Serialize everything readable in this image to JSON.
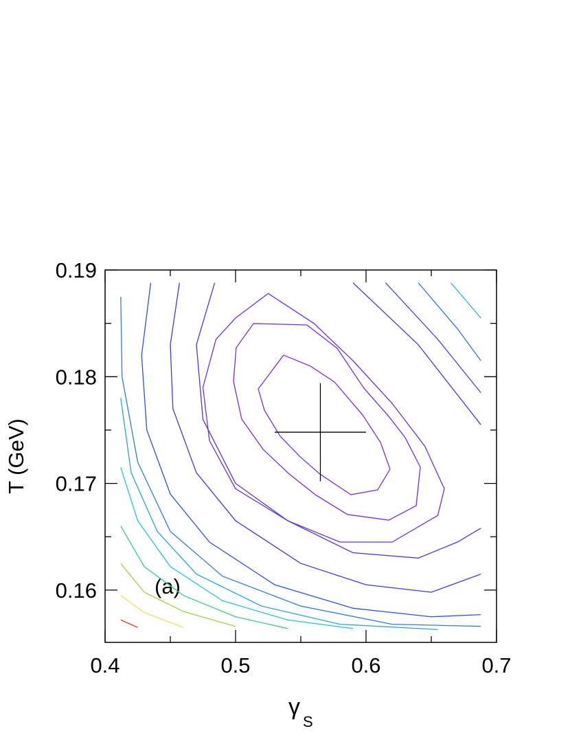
{
  "chart_data": {
    "type": "contour",
    "xlabel": "γ",
    "xlabel_subscript": "S",
    "ylabel": "T (GeV)",
    "annotation": "(a)",
    "xlim": [
      0.4,
      0.7
    ],
    "ylim": [
      0.1551,
      0.19
    ],
    "xticks": [
      0.4,
      0.5,
      0.6,
      0.7
    ],
    "yticks": [
      0.16,
      0.17,
      0.18,
      0.19
    ],
    "xminor": [
      0.45,
      0.55,
      0.65
    ],
    "yminor": [
      0.165,
      0.175,
      0.185
    ],
    "best_fit": {
      "x": 0.565,
      "y": 0.1748,
      "xerr": 0.035,
      "yerr": 0.0046,
      "color": "#000000"
    },
    "contours": [
      {
        "color": "#7a2cf0",
        "x": [
          0.5368,
          0.5174,
          0.5221,
          0.5342,
          0.5495,
          0.5647,
          0.5884,
          0.6089,
          0.6184,
          0.6111,
          0.5974,
          0.5758,
          0.5574,
          0.5368
        ],
        "y": [
          0.18202,
          0.17886,
          0.17686,
          0.17442,
          0.17249,
          0.17087,
          0.16894,
          0.16939,
          0.17133,
          0.17384,
          0.17641,
          0.1795,
          0.18099,
          0.18202
        ]
      },
      {
        "color": "#6f2df0",
        "x": [
          0.5137,
          0.5005,
          0.4984,
          0.5047,
          0.5211,
          0.5411,
          0.5611,
          0.5858,
          0.6174,
          0.6384,
          0.6416,
          0.63,
          0.6174,
          0.5984,
          0.5779,
          0.5547,
          0.5137
        ],
        "y": [
          0.18498,
          0.18272,
          0.17957,
          0.17603,
          0.17319,
          0.17088,
          0.16894,
          0.16708,
          0.16656,
          0.16791,
          0.17152,
          0.17429,
          0.17628,
          0.17892,
          0.18266,
          0.18485,
          0.18498
        ]
      },
      {
        "color": "#6530f0",
        "x": [
          0.5,
          0.525,
          0.56,
          0.59,
          0.62,
          0.645,
          0.66,
          0.655,
          0.62,
          0.58,
          0.54,
          0.5,
          0.48,
          0.475,
          0.485,
          0.5
        ],
        "y": [
          0.1855,
          0.1878,
          0.185,
          0.1815,
          0.1775,
          0.1735,
          0.1695,
          0.167,
          0.1645,
          0.1645,
          0.1665,
          0.1695,
          0.174,
          0.179,
          0.1835,
          0.1855
        ]
      },
      {
        "color": "#5032f0",
        "x": [
          0.484,
          0.47,
          0.475,
          0.5,
          0.54,
          0.59,
          0.64,
          0.67,
          0.688
        ],
        "y": [
          0.1888,
          0.183,
          0.176,
          0.17,
          0.1665,
          0.1635,
          0.163,
          0.1645,
          0.1658
        ]
      },
      {
        "color": "#3a38f0",
        "x": [
          0.457,
          0.45,
          0.452,
          0.47,
          0.5,
          0.55,
          0.6,
          0.65,
          0.688
        ],
        "y": [
          0.1888,
          0.183,
          0.177,
          0.171,
          0.1665,
          0.1625,
          0.1605,
          0.1598,
          0.1615
        ]
      },
      {
        "color": "#2d4ef0",
        "x": [
          0.435,
          0.428,
          0.432,
          0.45,
          0.48,
          0.53,
          0.59,
          0.65,
          0.688
        ],
        "y": [
          0.1888,
          0.182,
          0.175,
          0.169,
          0.1645,
          0.1605,
          0.1583,
          0.1575,
          0.1577
        ]
      },
      {
        "color": "#2f7ae8",
        "x": [
          0.412,
          0.413,
          0.425,
          0.45,
          0.49,
          0.55,
          0.62,
          0.688
        ],
        "y": [
          0.1875,
          0.18,
          0.172,
          0.1655,
          0.1613,
          0.1585,
          0.1568,
          0.1566
        ]
      },
      {
        "color": "#25a6e0",
        "x": [
          0.412,
          0.42,
          0.44,
          0.47,
          0.52,
          0.58,
          0.655
        ],
        "y": [
          0.178,
          0.171,
          0.1655,
          0.1615,
          0.1585,
          0.1568,
          0.1563
        ]
      },
      {
        "color": "#20c8d0",
        "x": [
          0.412,
          0.425,
          0.45,
          0.49,
          0.54,
          0.59
        ],
        "y": [
          0.1715,
          0.1665,
          0.1622,
          0.159,
          0.1572,
          0.1564
        ]
      },
      {
        "color": "#30d080",
        "x": [
          0.412,
          0.43,
          0.46,
          0.5,
          0.54
        ],
        "y": [
          0.166,
          0.1622,
          0.1595,
          0.1575,
          0.1564
        ]
      },
      {
        "color": "#9ad640",
        "x": [
          0.412,
          0.43,
          0.46,
          0.5
        ],
        "y": [
          0.1625,
          0.1598,
          0.158,
          0.1566
        ]
      },
      {
        "color": "#f0e060",
        "x": [
          0.412,
          0.43,
          0.46
        ],
        "y": [
          0.1595,
          0.1579,
          0.1565
        ]
      },
      {
        "color": "#e04020",
        "x": [
          0.412,
          0.425
        ],
        "y": [
          0.1572,
          0.1565
        ]
      },
      {
        "color": "#4a34f0",
        "x": [
          0.59,
          0.64,
          0.688
        ],
        "y": [
          0.1888,
          0.183,
          0.1755
        ]
      },
      {
        "color": "#3548f0",
        "x": [
          0.615,
          0.655,
          0.688
        ],
        "y": [
          0.1888,
          0.1835,
          0.1785
        ]
      },
      {
        "color": "#2f70ea",
        "x": [
          0.64,
          0.67,
          0.688
        ],
        "y": [
          0.1888,
          0.1845,
          0.1815
        ]
      },
      {
        "color": "#25b0e0",
        "x": [
          0.665,
          0.688
        ],
        "y": [
          0.1888,
          0.1855
        ]
      }
    ]
  }
}
